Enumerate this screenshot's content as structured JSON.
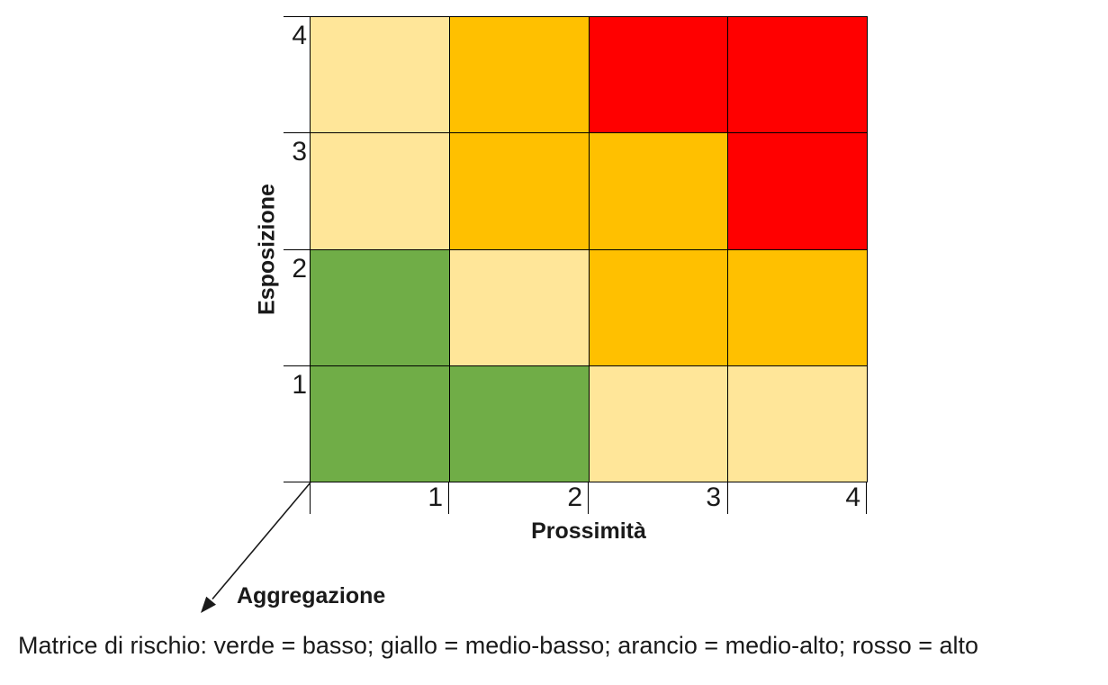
{
  "chart_data": {
    "type": "heatmap",
    "title": "",
    "xlabel": "Prossimità",
    "ylabel": "Esposizione",
    "x_ticks": [
      "1",
      "2",
      "3",
      "4"
    ],
    "y_ticks_top_to_bottom": [
      "4",
      "3",
      "2",
      "1"
    ],
    "x_range": [
      0,
      4
    ],
    "y_range": [
      0,
      4
    ],
    "grid": true,
    "grid_line_color": "#000000",
    "legend_position": "none",
    "levels": {
      "basso": "#70AD47",
      "medio-basso": "#FFE699",
      "medio-alto": "#FFC000",
      "alto": "#FF0000"
    },
    "matrix_rows_top_to_bottom": [
      [
        "medio-basso",
        "medio-alto",
        "alto",
        "alto"
      ],
      [
        "medio-basso",
        "medio-alto",
        "medio-alto",
        "alto"
      ],
      [
        "basso",
        "medio-basso",
        "medio-alto",
        "medio-alto"
      ],
      [
        "basso",
        "basso",
        "medio-basso",
        "medio-basso"
      ]
    ]
  },
  "annotation": {
    "arrow_label": "Aggregazione",
    "arrow_points_to": "origin of axes"
  },
  "caption": "Matrice di rischio: verde = basso; giallo = medio-basso; arancio = medio-alto; rosso = alto"
}
